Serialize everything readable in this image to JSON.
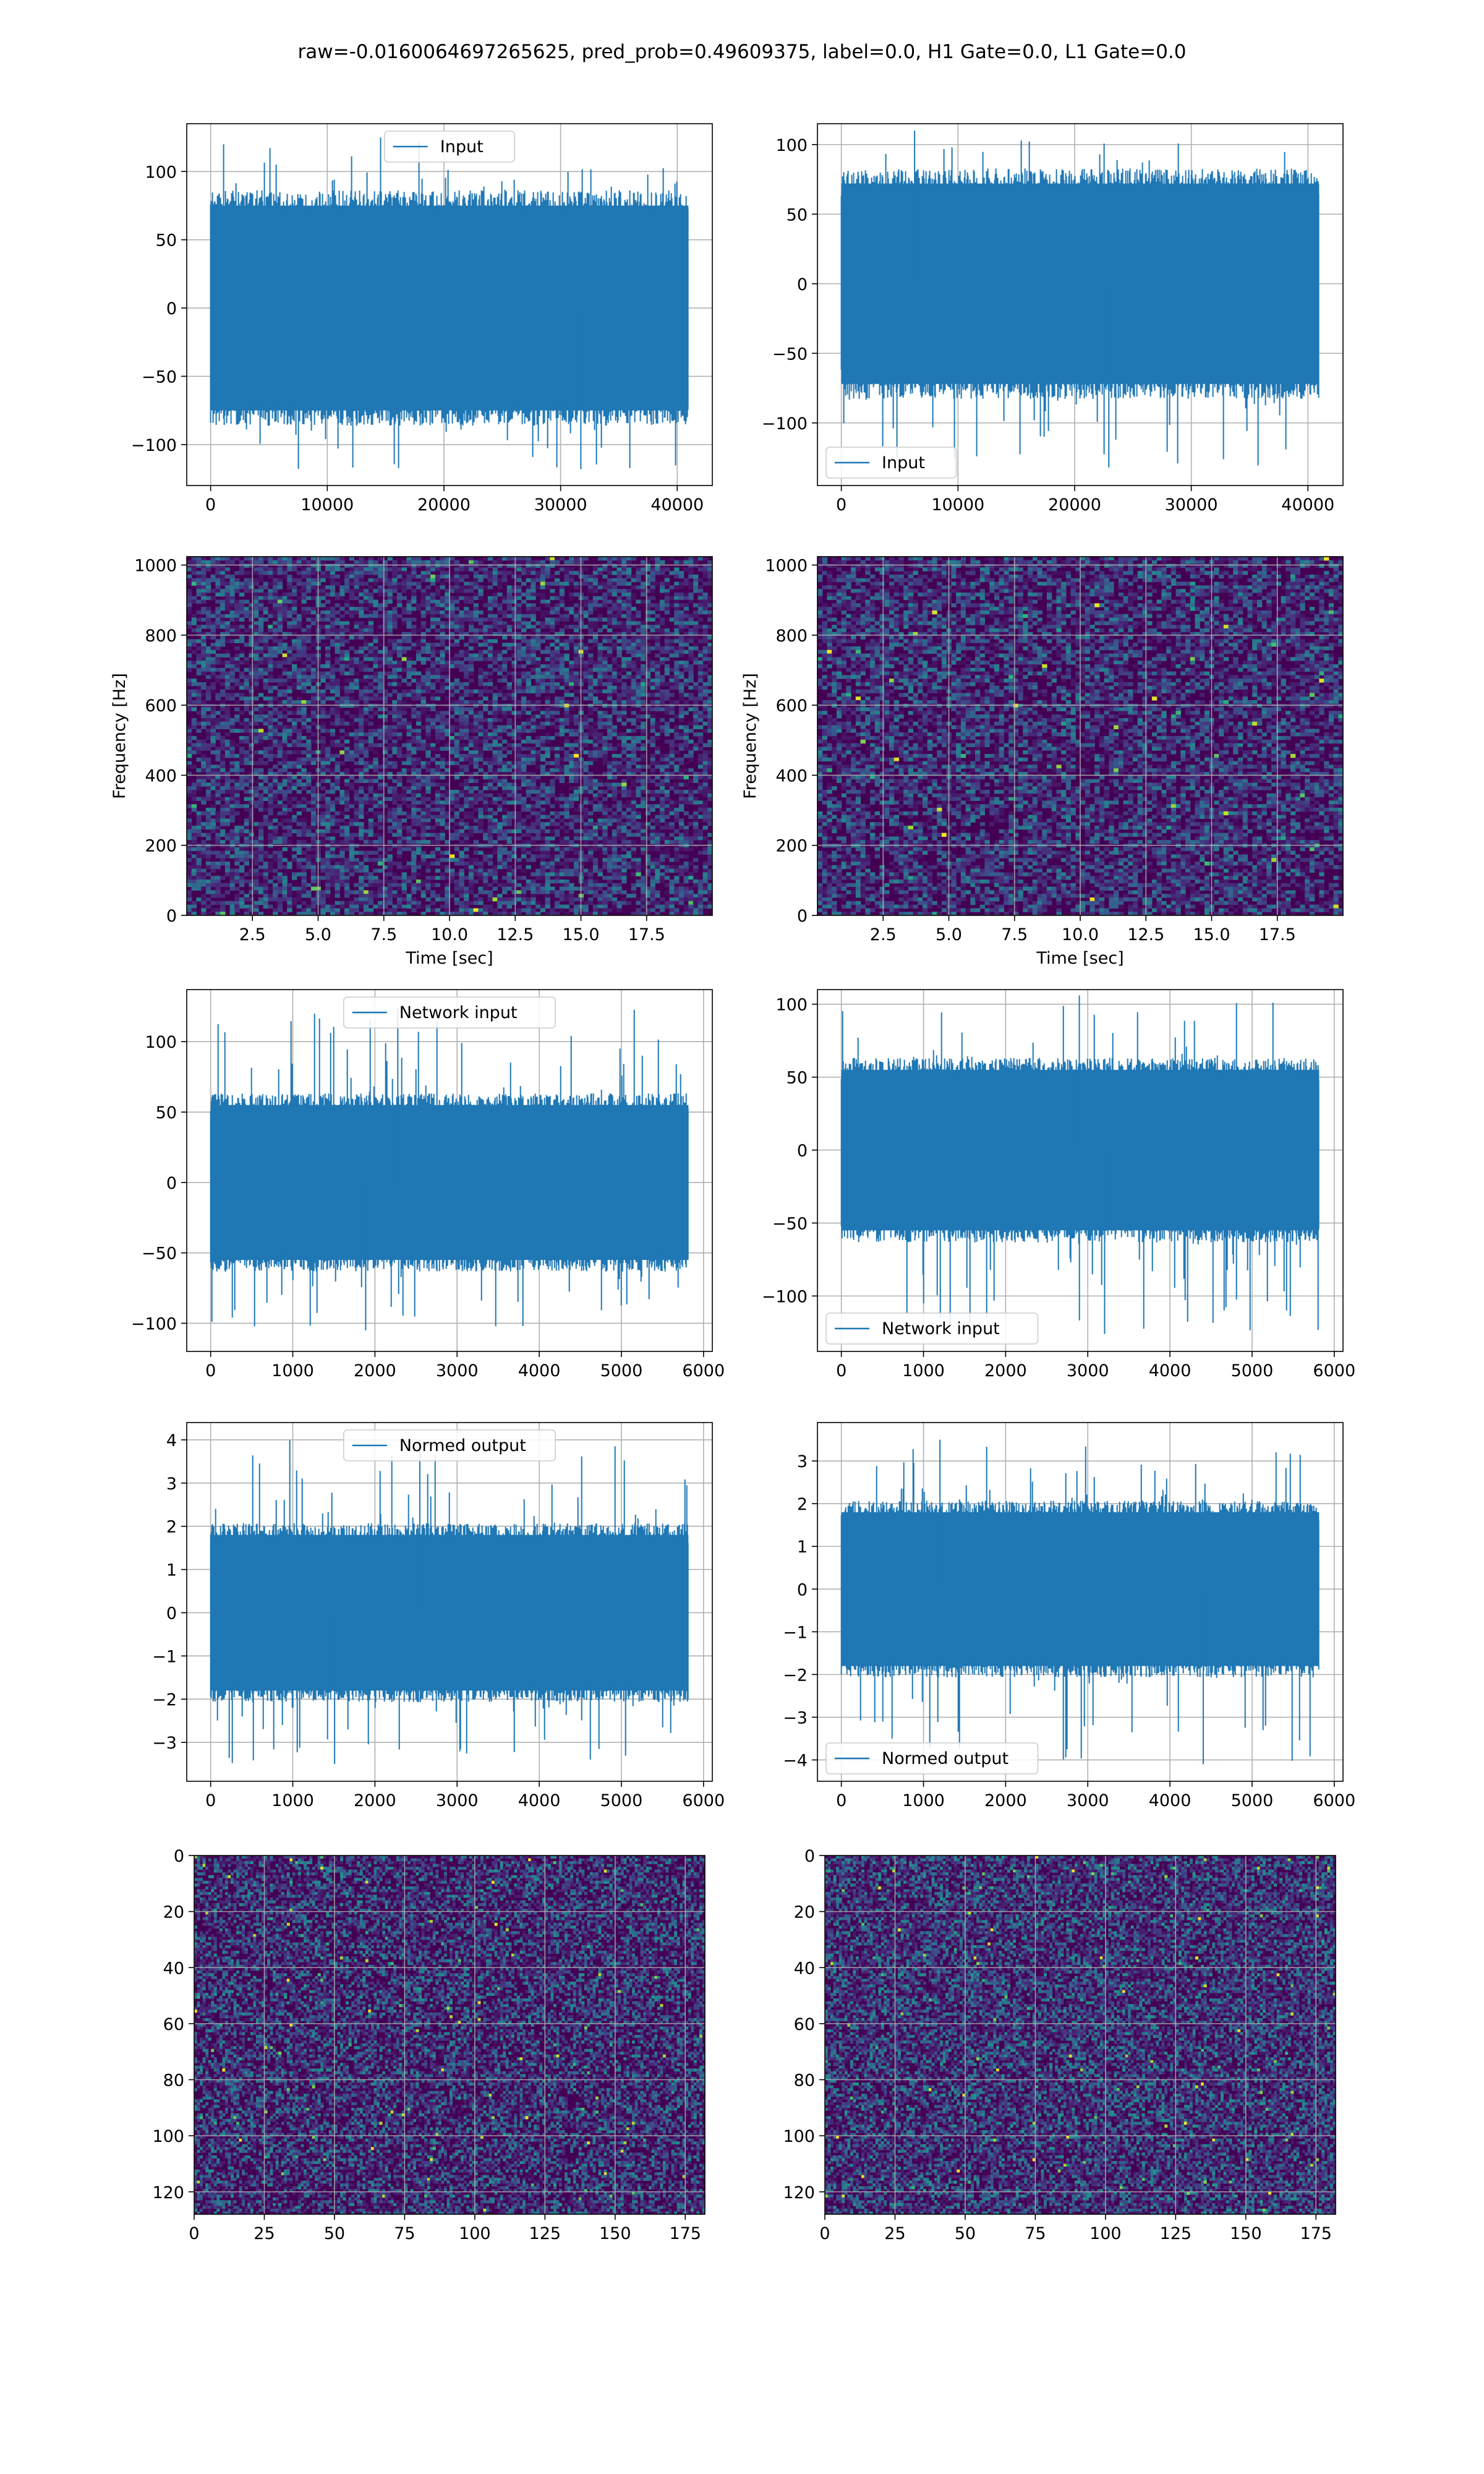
{
  "figure": {
    "suptitle": "raw=-0.0160064697265625, pred_prob=0.49609375, label=0.0, H1 Gate=0.0, L1 Gate=0.0"
  },
  "colors": {
    "line": "#1f77b4",
    "grid": "#b0b0b0",
    "viridis_low": "#440154",
    "viridis_high": "#fde725"
  },
  "chart_data": [
    {
      "type": "line",
      "row": 0,
      "col": 0,
      "legend": "Input",
      "legend_loc": "upper center",
      "xlim": [
        -2048,
        43008
      ],
      "ylim": [
        -130,
        135
      ],
      "xticks": [
        0,
        10000,
        20000,
        30000,
        40000
      ],
      "xtick_labels": [
        "0",
        "10000",
        "20000",
        "30000",
        "40000"
      ],
      "yticks": [
        -100,
        -50,
        0,
        50,
        100
      ],
      "ytick_labels": [
        "−100",
        "−50",
        "0",
        "50",
        "100"
      ],
      "x_range": [
        0,
        40960
      ],
      "center": 0,
      "body_amplitude": 75,
      "peak_max": 125,
      "peak_min": -118,
      "grid": true,
      "xlabel": "",
      "ylabel": ""
    },
    {
      "type": "line",
      "row": 0,
      "col": 1,
      "legend": "Input",
      "legend_loc": "lower left",
      "xlim": [
        -2048,
        43008
      ],
      "ylim": [
        -145,
        115
      ],
      "xticks": [
        0,
        10000,
        20000,
        30000,
        40000
      ],
      "xtick_labels": [
        "0",
        "10000",
        "20000",
        "30000",
        "40000"
      ],
      "yticks": [
        -100,
        -50,
        0,
        50,
        100
      ],
      "ytick_labels": [
        "−100",
        "−50",
        "0",
        "50",
        "100"
      ],
      "x_range": [
        0,
        40960
      ],
      "center": 0,
      "body_amplitude": 72,
      "peak_max": 110,
      "peak_min": -132,
      "grid": true,
      "xlabel": "",
      "ylabel": ""
    },
    {
      "type": "heatmap",
      "subtype": "spectrogram",
      "row": 1,
      "col": 0,
      "xlim": [
        0,
        20
      ],
      "ylim": [
        0,
        1024
      ],
      "xticks": [
        2.5,
        5.0,
        7.5,
        10.0,
        12.5,
        15.0,
        17.5
      ],
      "xtick_labels": [
        "2.5",
        "5.0",
        "7.5",
        "10.0",
        "12.5",
        "15.0",
        "17.5"
      ],
      "yticks": [
        0,
        200,
        400,
        600,
        800,
        1000
      ],
      "ytick_labels": [
        "0",
        "200",
        "400",
        "600",
        "800",
        "1000"
      ],
      "xlabel": "Time [sec]",
      "ylabel": "Frequency [Hz]",
      "colormap": "viridis",
      "grid": true
    },
    {
      "type": "heatmap",
      "subtype": "spectrogram",
      "row": 1,
      "col": 1,
      "xlim": [
        0,
        20
      ],
      "ylim": [
        0,
        1024
      ],
      "xticks": [
        2.5,
        5.0,
        7.5,
        10.0,
        12.5,
        15.0,
        17.5
      ],
      "xtick_labels": [
        "2.5",
        "5.0",
        "7.5",
        "10.0",
        "12.5",
        "15.0",
        "17.5"
      ],
      "yticks": [
        0,
        200,
        400,
        600,
        800,
        1000
      ],
      "ytick_labels": [
        "0",
        "200",
        "400",
        "600",
        "800",
        "1000"
      ],
      "xlabel": "Time [sec]",
      "ylabel": "Frequency [Hz]",
      "colormap": "viridis",
      "grid": true
    },
    {
      "type": "line",
      "row": 2,
      "col": 0,
      "legend": "Network input",
      "legend_loc": "upper center",
      "xlim": [
        -291,
        6107
      ],
      "ylim": [
        -120,
        137
      ],
      "xticks": [
        0,
        1000,
        2000,
        3000,
        4000,
        5000,
        6000
      ],
      "xtick_labels": [
        "0",
        "1000",
        "2000",
        "3000",
        "4000",
        "5000",
        "6000"
      ],
      "yticks": [
        -100,
        -50,
        0,
        50,
        100
      ],
      "ytick_labels": [
        "−100",
        "−50",
        "0",
        "50",
        "100"
      ],
      "x_range": [
        0,
        5816
      ],
      "center": 0,
      "body_amplitude": 55,
      "peak_max": 124,
      "peak_min": -105,
      "grid": true,
      "xlabel": "",
      "ylabel": ""
    },
    {
      "type": "line",
      "row": 2,
      "col": 1,
      "legend": "Network input",
      "legend_loc": "lower left",
      "xlim": [
        -291,
        6107
      ],
      "ylim": [
        -138,
        110
      ],
      "xticks": [
        0,
        1000,
        2000,
        3000,
        4000,
        5000,
        6000
      ],
      "xtick_labels": [
        "0",
        "1000",
        "2000",
        "3000",
        "4000",
        "5000",
        "6000"
      ],
      "yticks": [
        -100,
        -50,
        0,
        50,
        100
      ],
      "ytick_labels": [
        "−100",
        "−50",
        "0",
        "50",
        "100"
      ],
      "x_range": [
        0,
        5816
      ],
      "center": 0,
      "body_amplitude": 55,
      "peak_max": 106,
      "peak_min": -126,
      "grid": true,
      "xlabel": "",
      "ylabel": ""
    },
    {
      "type": "line",
      "row": 3,
      "col": 0,
      "legend": "Normed output",
      "legend_loc": "upper center",
      "xlim": [
        -291,
        6107
      ],
      "ylim": [
        -3.9,
        4.4
      ],
      "xticks": [
        0,
        1000,
        2000,
        3000,
        4000,
        5000,
        6000
      ],
      "xtick_labels": [
        "0",
        "1000",
        "2000",
        "3000",
        "4000",
        "5000",
        "6000"
      ],
      "yticks": [
        -3,
        -2,
        -1,
        0,
        1,
        2,
        3,
        4
      ],
      "ytick_labels": [
        "−3",
        "−2",
        "−1",
        "0",
        "1",
        "2",
        "3",
        "4"
      ],
      "x_range": [
        0,
        5816
      ],
      "center": 0,
      "body_amplitude": 1.8,
      "peak_max": 4.0,
      "peak_min": -3.5,
      "grid": true,
      "xlabel": "",
      "ylabel": ""
    },
    {
      "type": "line",
      "row": 3,
      "col": 1,
      "legend": "Normed output",
      "legend_loc": "lower left",
      "xlim": [
        -291,
        6107
      ],
      "ylim": [
        -4.5,
        3.9
      ],
      "xticks": [
        0,
        1000,
        2000,
        3000,
        4000,
        5000,
        6000
      ],
      "xtick_labels": [
        "0",
        "1000",
        "2000",
        "3000",
        "4000",
        "5000",
        "6000"
      ],
      "yticks": [
        -4,
        -3,
        -2,
        -1,
        0,
        1,
        2,
        3
      ],
      "ytick_labels": [
        "−4",
        "−3",
        "−2",
        "−1",
        "0",
        "1",
        "2",
        "3"
      ],
      "x_range": [
        0,
        5816
      ],
      "center": 0,
      "body_amplitude": 1.8,
      "peak_max": 3.5,
      "peak_min": -4.1,
      "grid": true,
      "xlabel": "",
      "ylabel": ""
    },
    {
      "type": "heatmap",
      "subtype": "matrix",
      "row": 4,
      "col": 0,
      "xlim": [
        0,
        182
      ],
      "ylim": [
        128,
        0
      ],
      "columns": 182,
      "rows": 128,
      "xticks": [
        0,
        25,
        50,
        75,
        100,
        125,
        150,
        175
      ],
      "xtick_labels": [
        "0",
        "25",
        "50",
        "75",
        "100",
        "125",
        "150",
        "175"
      ],
      "yticks": [
        0,
        20,
        40,
        60,
        80,
        100,
        120
      ],
      "ytick_labels": [
        "0",
        "20",
        "40",
        "60",
        "80",
        "100",
        "120"
      ],
      "colormap": "viridis",
      "grid": true
    },
    {
      "type": "heatmap",
      "subtype": "matrix",
      "row": 4,
      "col": 1,
      "xlim": [
        0,
        182
      ],
      "ylim": [
        128,
        0
      ],
      "columns": 182,
      "rows": 128,
      "xticks": [
        0,
        25,
        50,
        75,
        100,
        125,
        150,
        175
      ],
      "xtick_labels": [
        "0",
        "25",
        "50",
        "75",
        "100",
        "125",
        "150",
        "175"
      ],
      "yticks": [
        0,
        20,
        40,
        60,
        80,
        100,
        120
      ],
      "ytick_labels": [
        "0",
        "20",
        "40",
        "60",
        "80",
        "100",
        "120"
      ],
      "colormap": "viridis",
      "grid": true
    }
  ]
}
